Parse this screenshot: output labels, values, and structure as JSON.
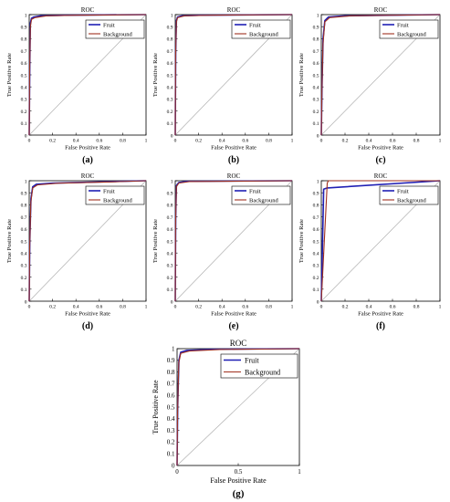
{
  "colors": {
    "fruit": "#1f1fb4",
    "background": "#a0301e",
    "diagonal": "#b0b0b0",
    "axis": "#000000"
  },
  "chart_data": [
    {
      "id": "a",
      "caption": "(a)",
      "type": "line",
      "title": "ROC",
      "xlabel": "False Positive Rate",
      "ylabel": "True Positive Rate",
      "xlim": [
        0,
        1
      ],
      "ylim": [
        0,
        1
      ],
      "xticks": [
        "0",
        "0.2",
        "0.4",
        "0.6",
        "0.8",
        "1"
      ],
      "yticks": [
        "0",
        "0.1",
        "0.2",
        "0.3",
        "0.4",
        "0.5",
        "0.6",
        "0.7",
        "0.8",
        "0.9",
        "1"
      ],
      "legend_position": "top-right",
      "series": [
        {
          "name": "Fruit",
          "points": [
            [
              0,
              0
            ],
            [
              0.005,
              0.6
            ],
            [
              0.01,
              0.93
            ],
            [
              0.02,
              0.97
            ],
            [
              0.04,
              0.98
            ],
            [
              0.1,
              0.99
            ],
            [
              0.3,
              0.995
            ],
            [
              1,
              1
            ]
          ]
        },
        {
          "name": "Background",
          "points": [
            [
              0,
              0
            ],
            [
              0.004,
              0.55
            ],
            [
              0.01,
              0.9
            ],
            [
              0.02,
              0.96
            ],
            [
              0.05,
              0.975
            ],
            [
              0.15,
              0.99
            ],
            [
              0.4,
              0.995
            ],
            [
              1,
              1
            ]
          ]
        }
      ]
    },
    {
      "id": "b",
      "caption": "(b)",
      "type": "line",
      "title": "ROC",
      "xlabel": "False Positive Rate",
      "ylabel": "True Positive Rate",
      "xlim": [
        0,
        1
      ],
      "ylim": [
        0,
        1
      ],
      "xticks": [
        "0",
        "0.2",
        "0.4",
        "0.6",
        "0.8",
        "1"
      ],
      "yticks": [
        "0",
        "0.1",
        "0.2",
        "0.3",
        "0.4",
        "0.5",
        "0.6",
        "0.7",
        "0.8",
        "0.9",
        "1"
      ],
      "legend_position": "top-right",
      "series": [
        {
          "name": "Fruit",
          "points": [
            [
              0,
              0
            ],
            [
              0.004,
              0.7
            ],
            [
              0.01,
              0.95
            ],
            [
              0.02,
              0.98
            ],
            [
              0.06,
              0.99
            ],
            [
              0.2,
              0.995
            ],
            [
              1,
              1
            ]
          ]
        },
        {
          "name": "Background",
          "points": [
            [
              0,
              0
            ],
            [
              0.003,
              0.65
            ],
            [
              0.01,
              0.94
            ],
            [
              0.02,
              0.975
            ],
            [
              0.08,
              0.99
            ],
            [
              0.3,
              0.995
            ],
            [
              1,
              1
            ]
          ]
        }
      ]
    },
    {
      "id": "c",
      "caption": "(c)",
      "type": "line",
      "title": "ROC",
      "xlabel": "False Positive Rate",
      "ylabel": "True Positive Rate",
      "xlim": [
        0,
        1
      ],
      "ylim": [
        0,
        1
      ],
      "xticks": [
        "0",
        "0.2",
        "0.4",
        "0.6",
        "0.8",
        "1"
      ],
      "yticks": [
        "0",
        "0.1",
        "0.2",
        "0.3",
        "0.4",
        "0.5",
        "0.6",
        "0.7",
        "0.8",
        "0.9",
        "1"
      ],
      "legend_position": "top-right",
      "series": [
        {
          "name": "Fruit",
          "points": [
            [
              0,
              0
            ],
            [
              0.006,
              0.4
            ],
            [
              0.015,
              0.8
            ],
            [
              0.03,
              0.95
            ],
            [
              0.06,
              0.98
            ],
            [
              0.2,
              0.99
            ],
            [
              1,
              1
            ]
          ]
        },
        {
          "name": "Background",
          "points": [
            [
              0,
              0
            ],
            [
              0.005,
              0.35
            ],
            [
              0.014,
              0.75
            ],
            [
              0.03,
              0.94
            ],
            [
              0.07,
              0.975
            ],
            [
              0.25,
              0.99
            ],
            [
              1,
              1
            ]
          ]
        }
      ]
    },
    {
      "id": "d",
      "caption": "(d)",
      "type": "line",
      "title": "ROC",
      "xlabel": "False Positive Rate",
      "ylabel": "True Positive Rate",
      "xlim": [
        0,
        1
      ],
      "ylim": [
        0,
        1
      ],
      "xticks": [
        "0",
        "0.2",
        "0.4",
        "0.6",
        "0.8",
        "1"
      ],
      "yticks": [
        "0",
        "0.1",
        "0.2",
        "0.3",
        "0.4",
        "0.5",
        "0.6",
        "0.7",
        "0.8",
        "0.9",
        "1"
      ],
      "legend_position": "top-right",
      "series": [
        {
          "name": "Fruit",
          "points": [
            [
              0,
              0
            ],
            [
              0.005,
              0.5
            ],
            [
              0.015,
              0.85
            ],
            [
              0.03,
              0.95
            ],
            [
              0.06,
              0.97
            ],
            [
              0.2,
              0.98
            ],
            [
              0.6,
              0.99
            ],
            [
              1,
              1
            ]
          ]
        },
        {
          "name": "Background",
          "points": [
            [
              0,
              0
            ],
            [
              0.004,
              0.45
            ],
            [
              0.014,
              0.82
            ],
            [
              0.03,
              0.94
            ],
            [
              0.07,
              0.965
            ],
            [
              0.25,
              0.98
            ],
            [
              0.7,
              0.99
            ],
            [
              1,
              1
            ]
          ]
        }
      ]
    },
    {
      "id": "e",
      "caption": "(e)",
      "type": "line",
      "title": "ROC",
      "xlabel": "False Positive Rate",
      "ylabel": "True Positive Rate",
      "xlim": [
        0,
        1
      ],
      "ylim": [
        0,
        1
      ],
      "xticks": [
        "0",
        "0.2",
        "0.4",
        "0.6",
        "0.8",
        "1"
      ],
      "yticks": [
        "0",
        "0.1",
        "0.2",
        "0.3",
        "0.4",
        "0.5",
        "0.6",
        "0.7",
        "0.8",
        "0.9",
        "1"
      ],
      "legend_position": "top-right",
      "series": [
        {
          "name": "Fruit",
          "points": [
            [
              0,
              0
            ],
            [
              0.004,
              0.7
            ],
            [
              0.01,
              0.96
            ],
            [
              0.03,
              0.985
            ],
            [
              0.1,
              0.995
            ],
            [
              1,
              1
            ]
          ]
        },
        {
          "name": "Background",
          "points": [
            [
              0,
              0
            ],
            [
              0.003,
              0.65
            ],
            [
              0.01,
              0.95
            ],
            [
              0.03,
              0.98
            ],
            [
              0.12,
              0.993
            ],
            [
              1,
              1
            ]
          ]
        }
      ]
    },
    {
      "id": "f",
      "caption": "(f)",
      "type": "line",
      "title": "ROC",
      "xlabel": "False Positive Rate",
      "ylabel": "True Positive Rate",
      "xlim": [
        0,
        1
      ],
      "ylim": [
        0,
        1
      ],
      "xticks": [
        "0",
        "0.2",
        "0.4",
        "0.6",
        "0.8",
        "1"
      ],
      "yticks": [
        "0",
        "0.1",
        "0.2",
        "0.3",
        "0.4",
        "0.5",
        "0.6",
        "0.7",
        "0.8",
        "0.9",
        "1"
      ],
      "legend_position": "top-right",
      "series": [
        {
          "name": "Fruit",
          "points": [
            [
              0,
              0
            ],
            [
              0.02,
              0.93
            ],
            [
              0.05,
              0.94
            ],
            [
              1,
              1
            ]
          ]
        },
        {
          "name": "Background",
          "points": [
            [
              0,
              0
            ],
            [
              0.05,
              0.98
            ],
            [
              0.06,
              1
            ],
            [
              1,
              1
            ]
          ]
        }
      ]
    },
    {
      "id": "g",
      "caption": "(g)",
      "type": "line",
      "title": "ROC",
      "xlabel": "False Positive Rate",
      "ylabel": "True Positive Rate",
      "xlim": [
        0,
        1
      ],
      "ylim": [
        0,
        1
      ],
      "xticks": [
        "0",
        "0.5",
        "1"
      ],
      "yticks": [
        "0",
        "0.1",
        "0.2",
        "0.3",
        "0.4",
        "0.5",
        "0.6",
        "0.7",
        "0.8",
        "0.9",
        "1"
      ],
      "legend_position": "top-right",
      "series": [
        {
          "name": "Fruit",
          "points": [
            [
              0,
              0
            ],
            [
              0.005,
              0.5
            ],
            [
              0.015,
              0.9
            ],
            [
              0.03,
              0.97
            ],
            [
              0.08,
              0.985
            ],
            [
              0.3,
              0.995
            ],
            [
              1,
              1
            ]
          ]
        },
        {
          "name": "Background",
          "points": [
            [
              0,
              0
            ],
            [
              0.004,
              0.45
            ],
            [
              0.014,
              0.88
            ],
            [
              0.03,
              0.96
            ],
            [
              0.1,
              0.98
            ],
            [
              0.35,
              0.993
            ],
            [
              1,
              1
            ]
          ]
        }
      ]
    }
  ]
}
